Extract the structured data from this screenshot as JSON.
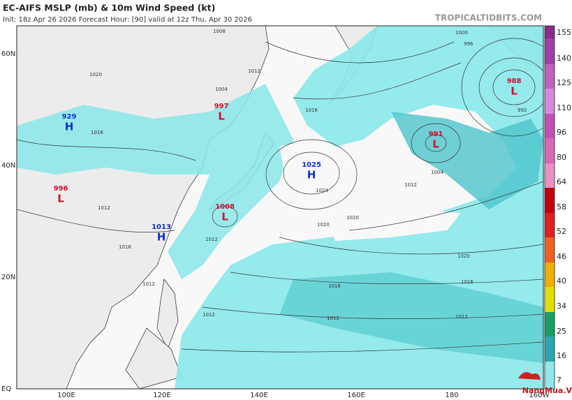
{
  "header": {
    "title": "EC-AIFS MSLP (mb) & 10m Wind Speed (kt)",
    "subtitle": "Init: 18z Apr 26 2026   Forecast Hour: [90]   valid at 12z Thu, Apr 30 2026",
    "site": "TROPICALTIDBITS.COM"
  },
  "map": {
    "lat_labels": [
      "60N",
      "40N",
      "20N",
      "EQ"
    ],
    "lon_labels": [
      "100E",
      "120E",
      "140E",
      "160E",
      "180",
      "160W"
    ],
    "centers": [
      {
        "value": "929",
        "letter": "H"
      },
      {
        "value": "997",
        "letter": "L"
      },
      {
        "value": "996",
        "letter": "L"
      },
      {
        "value": "1008",
        "letter": "L"
      },
      {
        "value": "1013",
        "letter": "H"
      },
      {
        "value": "1025",
        "letter": "H"
      },
      {
        "value": "991",
        "letter": "L"
      },
      {
        "value": "988",
        "letter": "L"
      }
    ],
    "isobar_labels": [
      "1008",
      "1012",
      "1004",
      "1016",
      "1024",
      "1020",
      "1020",
      "1012",
      "1004",
      "1000",
      "996",
      "992",
      "1020",
      "1016",
      "1012",
      "1016",
      "1012",
      "1012",
      "1012",
      "1016",
      "1012",
      "1020",
      "1016",
      "1012"
    ]
  },
  "colorbar": {
    "labels": [
      "155",
      "140",
      "125",
      "110",
      "96",
      "80",
      "64",
      "58",
      "52",
      "46",
      "40",
      "34",
      "25",
      "16",
      "7"
    ]
  },
  "watermark": "NangMua.VN"
}
